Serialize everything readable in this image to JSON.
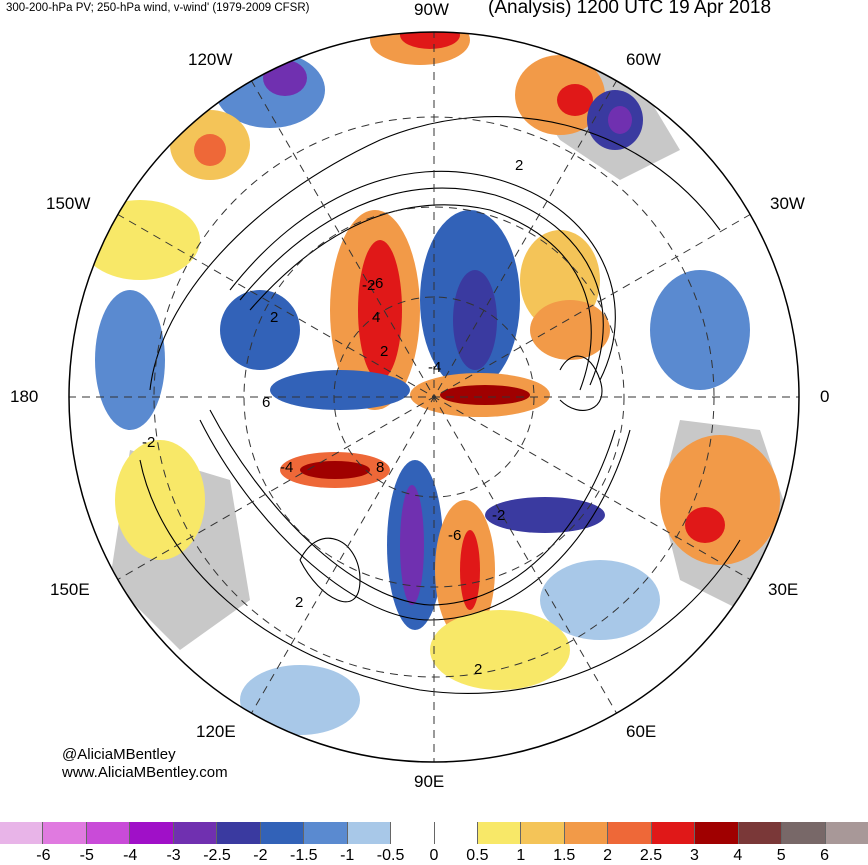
{
  "header": {
    "left": "300-200-hPa PV; 250-hPa wind, v-wind' (1979-2009 CFSR)",
    "right": "(Analysis) 1200 UTC 19 Apr 2018"
  },
  "longitude_labels": {
    "n90w": "90W",
    "n60w": "60W",
    "n30w": "30W",
    "n0": "0",
    "n30e": "30E",
    "n60e": "60E",
    "n90e": "90E",
    "n120e": "120E",
    "n150e": "150E",
    "n180": "180",
    "n150w": "150W",
    "n120w": "120W"
  },
  "credits": {
    "twitter": "@AliciaMBentley",
    "website": "www.AliciaMBentley.com"
  },
  "colorbar": {
    "colors": [
      "#e8b4e8",
      "#e07ae0",
      "#c94bd8",
      "#a010c8",
      "#7030b0",
      "#3a3aa0",
      "#3262b8",
      "#5a8ad0",
      "#a8c8e8",
      "#ffffff",
      "#ffffff",
      "#f8e868",
      "#f4c458",
      "#f29a48",
      "#ee6838",
      "#e01818",
      "#a00000",
      "#7a3838",
      "#786868",
      "#a89898"
    ],
    "ticks": [
      "-6",
      "-5",
      "-4",
      "-3",
      "-2.5",
      "-2",
      "-1.5",
      "-1",
      "-0.5",
      "0",
      "0.5",
      "1",
      "1.5",
      "2",
      "2.5",
      "3",
      "4",
      "5",
      "6"
    ]
  },
  "map": {
    "background": "#ffffff",
    "land_color": "#c8c8c8",
    "contour_labels": [
      "2",
      "2",
      "-2",
      "6",
      "-4",
      "-2",
      "-6",
      "4",
      "-4",
      "8",
      "-6",
      "-2",
      "2",
      "2",
      "2"
    ]
  }
}
